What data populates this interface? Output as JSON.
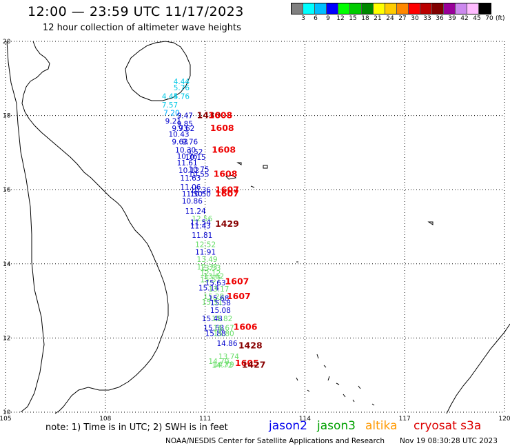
{
  "header": {
    "title": "12:00 — 23:59 UTC 11/17/2023",
    "subtitle": "12 hour collection of altimeter wave heights"
  },
  "legend": {
    "colors": [
      "#808080",
      "#00ffff",
      "#00bfff",
      "#0000ff",
      "#00ff00",
      "#00cc00",
      "#008800",
      "#ffff00",
      "#ffcc00",
      "#ff8800",
      "#ff0000",
      "#bb0000",
      "#800000",
      "#990099",
      "#cc88ee",
      "#ffbbff",
      "#000000"
    ],
    "labels": [
      "3",
      "6",
      "9",
      "12",
      "15",
      "18",
      "21",
      "24",
      "27",
      "30",
      "33",
      "36",
      "39",
      "42",
      "45",
      "70"
    ],
    "unit": "(ft)"
  },
  "map": {
    "lon_ticks": [
      "105",
      "108",
      "111",
      "114",
      "117",
      "120"
    ],
    "lat_ticks": [
      "20",
      "18",
      "16",
      "14",
      "12",
      "10"
    ],
    "lon_range": [
      105,
      120
    ],
    "lat_range": [
      10,
      20
    ],
    "coastline_color": "#000000",
    "grid_color": "#000000",
    "observations": [
      {
        "text": "4.44",
        "lon": 110.05,
        "lat": 18.85,
        "color": "#00c8e6"
      },
      {
        "text": "5.76",
        "lon": 110.05,
        "lat": 18.68,
        "color": "#00c8e6"
      },
      {
        "text": "4.44",
        "lon": 109.7,
        "lat": 18.45,
        "color": "#00c8e6"
      },
      {
        "text": "5.76",
        "lon": 110.05,
        "lat": 18.45,
        "color": "#00c8e6"
      },
      {
        "text": "7.57",
        "lon": 109.7,
        "lat": 18.22,
        "color": "#00c8e6"
      },
      {
        "text": "7.20",
        "lon": 109.75,
        "lat": 18.0,
        "color": "#00b0ff"
      },
      {
        "text": "9.47",
        "lon": 110.15,
        "lat": 17.93,
        "color": "#0000cc"
      },
      {
        "text": "9.21",
        "lon": 109.8,
        "lat": 17.78,
        "color": "#0000cc"
      },
      {
        "text": "9.85",
        "lon": 110.15,
        "lat": 17.7,
        "color": "#0000cc"
      },
      {
        "text": "9.73",
        "lon": 110.0,
        "lat": 17.58,
        "color": "#0000cc"
      },
      {
        "text": "9.62",
        "lon": 110.2,
        "lat": 17.58,
        "color": "#0000cc"
      },
      {
        "text": "10.43",
        "lon": 109.9,
        "lat": 17.43,
        "color": "#0000cc"
      },
      {
        "text": "9.63",
        "lon": 110.0,
        "lat": 17.22,
        "color": "#0000cc"
      },
      {
        "text": "9.76",
        "lon": 110.3,
        "lat": 17.22,
        "color": "#0000cc"
      },
      {
        "text": "10.30",
        "lon": 110.1,
        "lat": 17.0,
        "color": "#0000cc"
      },
      {
        "text": "9.52",
        "lon": 110.45,
        "lat": 16.95,
        "color": "#0000cc"
      },
      {
        "text": "10.36",
        "lon": 110.15,
        "lat": 16.83,
        "color": "#0000cc"
      },
      {
        "text": "10.15",
        "lon": 110.4,
        "lat": 16.8,
        "color": "#0000cc"
      },
      {
        "text": "11.61",
        "lon": 110.15,
        "lat": 16.65,
        "color": "#0000cc"
      },
      {
        "text": "10.75",
        "lon": 110.5,
        "lat": 16.48,
        "color": "#0000cc"
      },
      {
        "text": "10.12",
        "lon": 110.2,
        "lat": 16.45,
        "color": "#0000cc"
      },
      {
        "text": "10.55",
        "lon": 110.5,
        "lat": 16.35,
        "color": "#0000cc"
      },
      {
        "text": "11.63",
        "lon": 110.25,
        "lat": 16.25,
        "color": "#0000cc"
      },
      {
        "text": "11.06",
        "lon": 110.25,
        "lat": 16.0,
        "color": "#0000cc"
      },
      {
        "text": "10.36",
        "lon": 110.55,
        "lat": 15.92,
        "color": "#0000cc"
      },
      {
        "text": "11.50",
        "lon": 110.3,
        "lat": 15.82,
        "color": "#0000cc"
      },
      {
        "text": "10.50",
        "lon": 110.55,
        "lat": 15.82,
        "color": "#0000cc"
      },
      {
        "text": "10.86",
        "lon": 110.3,
        "lat": 15.62,
        "color": "#0000cc"
      },
      {
        "text": "11.24",
        "lon": 110.4,
        "lat": 15.35,
        "color": "#0000cc"
      },
      {
        "text": "12.56",
        "lon": 110.6,
        "lat": 15.15,
        "color": "#66dd66"
      },
      {
        "text": "11.54",
        "lon": 110.55,
        "lat": 15.05,
        "color": "#0000cc"
      },
      {
        "text": "11.43",
        "lon": 110.55,
        "lat": 14.95,
        "color": "#0000cc"
      },
      {
        "text": "11.81",
        "lon": 110.6,
        "lat": 14.7,
        "color": "#0000cc"
      },
      {
        "text": "12.52",
        "lon": 110.7,
        "lat": 14.45,
        "color": "#66dd66"
      },
      {
        "text": "11.91",
        "lon": 110.7,
        "lat": 14.25,
        "color": "#0000cc"
      },
      {
        "text": "13.49",
        "lon": 110.75,
        "lat": 14.05,
        "color": "#66dd66"
      },
      {
        "text": "12.33",
        "lon": 110.75,
        "lat": 13.85,
        "color": "#66dd66"
      },
      {
        "text": "13.53",
        "lon": 110.85,
        "lat": 13.82,
        "color": "#66dd66"
      },
      {
        "text": "12.12",
        "lon": 110.85,
        "lat": 13.68,
        "color": "#66dd66"
      },
      {
        "text": "13.62",
        "lon": 110.95,
        "lat": 13.6,
        "color": "#66dd66"
      },
      {
        "text": "15.57",
        "lon": 110.85,
        "lat": 13.5,
        "color": "#66dd66"
      },
      {
        "text": "15.63",
        "lon": 111.0,
        "lat": 13.42,
        "color": "#0000cc"
      },
      {
        "text": "15.14",
        "lon": 110.8,
        "lat": 13.28,
        "color": "#0000cc"
      },
      {
        "text": "13.17",
        "lon": 111.1,
        "lat": 13.25,
        "color": "#66dd66"
      },
      {
        "text": "15.28",
        "lon": 110.95,
        "lat": 13.05,
        "color": "#66dd66"
      },
      {
        "text": "15.68",
        "lon": 111.1,
        "lat": 13.0,
        "color": "#0000cc"
      },
      {
        "text": "15.51",
        "lon": 110.9,
        "lat": 12.9,
        "color": "#66dd66"
      },
      {
        "text": "15.58",
        "lon": 111.15,
        "lat": 12.88,
        "color": "#0000cc"
      },
      {
        "text": "15.08",
        "lon": 111.15,
        "lat": 12.68,
        "color": "#0000cc"
      },
      {
        "text": "15.48",
        "lon": 110.9,
        "lat": 12.45,
        "color": "#0000cc"
      },
      {
        "text": "15.82",
        "lon": 111.2,
        "lat": 12.45,
        "color": "#66dd66"
      },
      {
        "text": "15.68",
        "lon": 110.95,
        "lat": 12.2,
        "color": "#0000cc"
      },
      {
        "text": "16.67",
        "lon": 111.25,
        "lat": 12.2,
        "color": "#66dd66"
      },
      {
        "text": "15.88",
        "lon": 111.0,
        "lat": 12.05,
        "color": "#0000cc"
      },
      {
        "text": "15.80",
        "lon": 111.25,
        "lat": 12.05,
        "color": "#66dd66"
      },
      {
        "text": "14.86",
        "lon": 111.35,
        "lat": 11.78,
        "color": "#0000cc"
      },
      {
        "text": "13.74",
        "lon": 111.4,
        "lat": 11.43,
        "color": "#66dd66"
      },
      {
        "text": "14.70",
        "lon": 111.1,
        "lat": 11.3,
        "color": "#66dd66"
      },
      {
        "text": "14.79",
        "lon": 111.25,
        "lat": 11.22,
        "color": "#66dd66"
      },
      {
        "text": "14.72",
        "lon": 111.2,
        "lat": 11.2,
        "color": "#66dd66"
      },
      {
        "text": "1430",
        "lon": 110.75,
        "lat": 17.93,
        "color": "#880000"
      },
      {
        "text": "1608",
        "lon": 111.1,
        "lat": 17.93,
        "color": "#ee0000"
      },
      {
        "text": "1608",
        "lon": 111.15,
        "lat": 17.58,
        "color": "#ee0000"
      },
      {
        "text": "1608",
        "lon": 111.2,
        "lat": 17.0,
        "color": "#ee0000"
      },
      {
        "text": "1608",
        "lon": 111.25,
        "lat": 16.35,
        "color": "#ee0000"
      },
      {
        "text": "1607",
        "lon": 111.3,
        "lat": 15.92,
        "color": "#ee0000"
      },
      {
        "text": "1607",
        "lon": 111.3,
        "lat": 15.82,
        "color": "#ee0000"
      },
      {
        "text": "1429",
        "lon": 111.3,
        "lat": 15.0,
        "color": "#880000"
      },
      {
        "text": "1607",
        "lon": 111.6,
        "lat": 13.45,
        "color": "#ee0000"
      },
      {
        "text": "1607",
        "lon": 111.65,
        "lat": 13.05,
        "color": "#ee0000"
      },
      {
        "text": "1606",
        "lon": 111.85,
        "lat": 12.22,
        "color": "#ee0000"
      },
      {
        "text": "1428",
        "lon": 112.0,
        "lat": 11.72,
        "color": "#880000"
      },
      {
        "text": "1605",
        "lon": 111.9,
        "lat": 11.25,
        "color": "#ee0000"
      },
      {
        "text": "1427",
        "lon": 112.1,
        "lat": 11.2,
        "color": "#880000"
      }
    ]
  },
  "footer": {
    "note": "note: 1) Time is in UTC; 2) SWH is in feet",
    "satellites": [
      {
        "name": "jason2",
        "color": "#0000ee"
      },
      {
        "name": "jason3",
        "color": "#00a000"
      },
      {
        "name": "altika",
        "color": "#ff9900"
      },
      {
        "name": "cryosat s3a",
        "color": "#dd0000"
      }
    ],
    "credit": "NOAA/NESDIS Center for Satellite Applications and Research",
    "timestamp": "Nov 19 08:30:28 UTC 2023"
  }
}
